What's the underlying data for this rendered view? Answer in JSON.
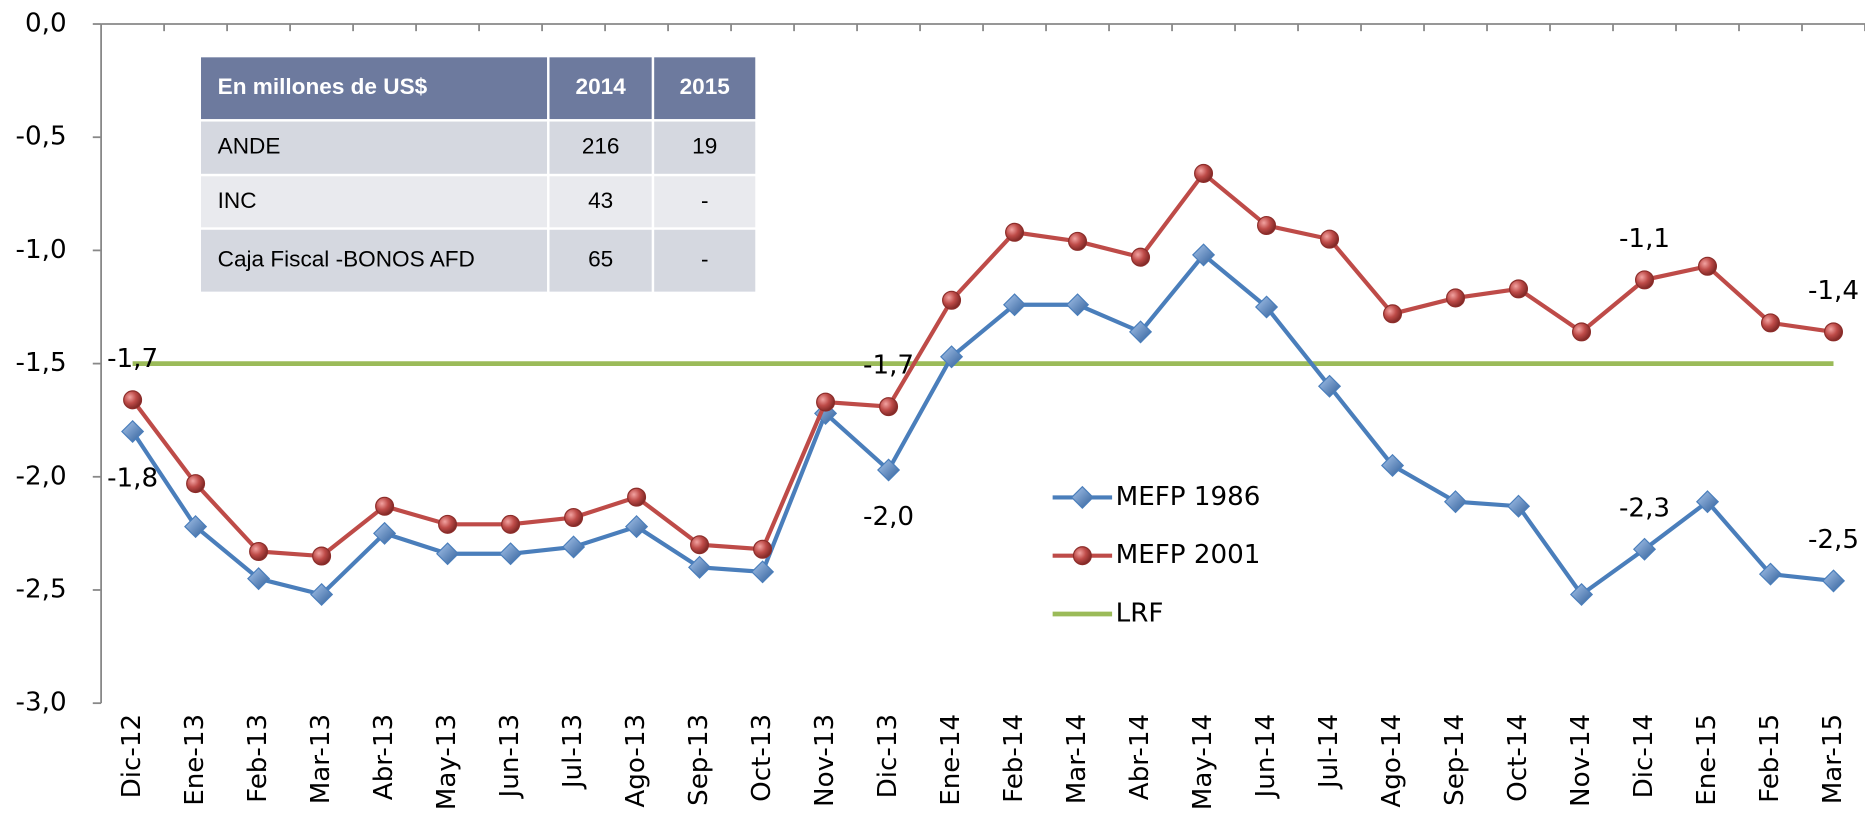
{
  "chart_data": {
    "type": "line",
    "categories": [
      "Dic-12",
      "Ene-13",
      "Feb-13",
      "Mar-13",
      "Abr-13",
      "May-13",
      "Jun-13",
      "Jul-13",
      "Ago-13",
      "Sep-13",
      "Oct-13",
      "Nov-13",
      "Dic-13",
      "Ene-14",
      "Feb-14",
      "Mar-14",
      "Abr-14",
      "May-14",
      "Jun-14",
      "Jul-14",
      "Ago-14",
      "Sep-14",
      "Oct-14",
      "Nov-14",
      "Dic-14",
      "Ene-15",
      "Feb-15",
      "Mar-15"
    ],
    "series": [
      {
        "name": "MEFP 1986",
        "color": "#4a7ebb",
        "marker": "diamond",
        "values": [
          -1.8,
          -2.22,
          -2.45,
          -2.52,
          -2.25,
          -2.34,
          -2.34,
          -2.31,
          -2.22,
          -2.4,
          -2.42,
          -1.72,
          -1.97,
          -1.47,
          -1.24,
          -1.24,
          -1.36,
          -1.02,
          -1.25,
          -1.6,
          -1.95,
          -2.11,
          -2.13,
          -2.52,
          -2.32,
          -2.11,
          -2.43,
          -2.46
        ],
        "value_labels": [
          "-1,8",
          null,
          null,
          null,
          null,
          null,
          null,
          null,
          null,
          null,
          null,
          null,
          "-2,0",
          null,
          null,
          null,
          null,
          null,
          null,
          null,
          null,
          null,
          null,
          null,
          "-2,3",
          null,
          null,
          "-2,5"
        ]
      },
      {
        "name": "MEFP 2001",
        "color": "#be4b48",
        "marker": "circle",
        "values": [
          -1.66,
          -2.03,
          -2.33,
          -2.35,
          -2.13,
          -2.21,
          -2.21,
          -2.18,
          -2.09,
          -2.3,
          -2.32,
          -1.67,
          -1.69,
          -1.22,
          -0.92,
          -0.96,
          -1.03,
          -0.66,
          -0.89,
          -0.95,
          -1.28,
          -1.21,
          -1.17,
          -1.36,
          -1.13,
          -1.07,
          -1.32,
          -1.36
        ],
        "value_labels": [
          "-1,7",
          null,
          null,
          null,
          null,
          null,
          null,
          null,
          null,
          null,
          null,
          null,
          "-1,7",
          null,
          null,
          null,
          null,
          null,
          null,
          null,
          null,
          null,
          null,
          null,
          "-1,1",
          null,
          null,
          "-1,4"
        ]
      },
      {
        "name": "LRF",
        "color": "#9bbb59",
        "marker": "none",
        "values": [
          -1.5,
          -1.5,
          -1.5,
          -1.5,
          -1.5,
          -1.5,
          -1.5,
          -1.5,
          -1.5,
          -1.5,
          -1.5,
          -1.5,
          -1.5,
          -1.5,
          -1.5,
          -1.5,
          -1.5,
          -1.5,
          -1.5,
          -1.5,
          -1.5,
          -1.5,
          -1.5,
          -1.5,
          -1.5,
          -1.5,
          -1.5,
          -1.5
        ]
      }
    ],
    "ylim": [
      -3,
      0
    ],
    "yticks": [
      {
        "value": 0,
        "label": "0,0"
      },
      {
        "value": -0.5,
        "label": "-0,5"
      },
      {
        "value": -1,
        "label": "-1,0"
      },
      {
        "value": -1.5,
        "label": "-1,5"
      },
      {
        "value": -2,
        "label": "-2,0"
      },
      {
        "value": -2.5,
        "label": "-2,5"
      },
      {
        "value": -3,
        "label": "-3,0"
      }
    ],
    "grid": false,
    "legend": "center"
  },
  "table": {
    "header": [
      "En millones de US$",
      "2014",
      "2015"
    ],
    "rows": [
      [
        "ANDE",
        "216",
        "19"
      ],
      [
        "INC",
        "43",
        "-"
      ],
      [
        "Caja Fiscal -BONOS AFD",
        "65",
        "-"
      ]
    ]
  }
}
